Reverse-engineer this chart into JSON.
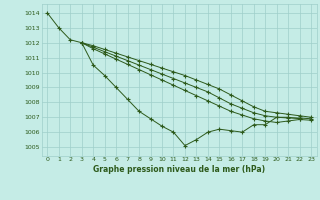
{
  "title": "Graphe pression niveau de la mer (hPa)",
  "background_color": "#c5ece6",
  "grid_color": "#9fcfca",
  "line_color": "#2d5a1b",
  "xlim": [
    -0.5,
    23.5
  ],
  "ylim": [
    1004.4,
    1014.6
  ],
  "yticks": [
    1005,
    1006,
    1007,
    1008,
    1009,
    1010,
    1011,
    1012,
    1013,
    1014
  ],
  "xticks": [
    0,
    1,
    2,
    3,
    4,
    5,
    6,
    7,
    8,
    9,
    10,
    11,
    12,
    13,
    14,
    15,
    16,
    17,
    18,
    19,
    20,
    21,
    22,
    23
  ],
  "series": [
    {
      "x": [
        0,
        1,
        2,
        3,
        4,
        5,
        6,
        7,
        8,
        9,
        10,
        11,
        12,
        13,
        14,
        15,
        16,
        17,
        18,
        19,
        20,
        21,
        22
      ],
      "y": [
        1014.0,
        1013.0,
        1012.2,
        1012.0,
        1010.5,
        1009.8,
        1009.0,
        1008.2,
        1007.4,
        1006.9,
        1006.4,
        1006.0,
        1005.1,
        1005.5,
        1006.0,
        1006.2,
        1006.1,
        1006.0,
        1006.5,
        1006.5,
        1007.0,
        1007.0,
        1006.9
      ]
    },
    {
      "x": [
        3,
        4,
        5,
        6,
        7,
        8,
        9,
        10,
        11,
        12,
        13,
        14,
        15,
        16,
        17,
        18,
        19,
        20,
        21,
        22,
        23
      ],
      "y": [
        1012.0,
        1011.8,
        1011.55,
        1011.3,
        1011.05,
        1010.8,
        1010.55,
        1010.3,
        1010.05,
        1009.8,
        1009.5,
        1009.2,
        1008.9,
        1008.5,
        1008.1,
        1007.7,
        1007.4,
        1007.3,
        1007.2,
        1007.1,
        1007.0
      ]
    },
    {
      "x": [
        3,
        4,
        5,
        6,
        7,
        8,
        9,
        10,
        11,
        12,
        13,
        14,
        15,
        16,
        17,
        18,
        19,
        20,
        21,
        22,
        23
      ],
      "y": [
        1012.0,
        1011.7,
        1011.4,
        1011.1,
        1010.8,
        1010.5,
        1010.2,
        1009.9,
        1009.6,
        1009.3,
        1009.0,
        1008.7,
        1008.3,
        1007.9,
        1007.6,
        1007.3,
        1007.1,
        1007.0,
        1006.95,
        1006.95,
        1006.9
      ]
    },
    {
      "x": [
        3,
        4,
        5,
        6,
        7,
        8,
        9,
        10,
        11,
        12,
        13,
        14,
        15,
        16,
        17,
        18,
        19,
        20,
        21,
        22,
        23
      ],
      "y": [
        1012.0,
        1011.6,
        1011.25,
        1010.9,
        1010.55,
        1010.2,
        1009.85,
        1009.5,
        1009.15,
        1008.8,
        1008.45,
        1008.1,
        1007.75,
        1007.4,
        1007.15,
        1006.9,
        1006.75,
        1006.65,
        1006.75,
        1006.85,
        1006.8
      ]
    }
  ]
}
